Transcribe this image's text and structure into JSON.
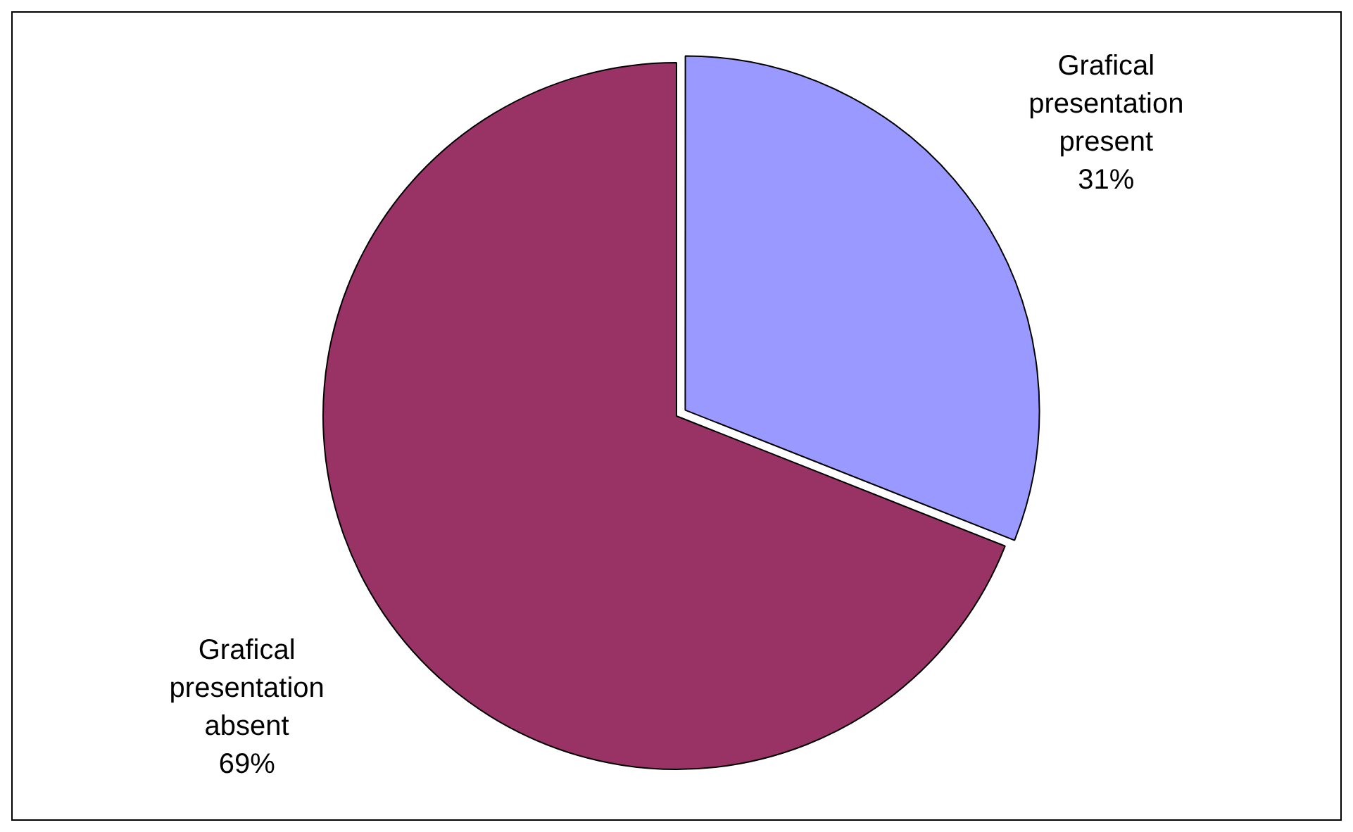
{
  "chart_data": {
    "type": "pie",
    "categories": [
      "Grafical presentation present",
      "Grafical presentation absent"
    ],
    "values": [
      31,
      69
    ],
    "colors": [
      "#9999ff",
      "#993366"
    ],
    "value_labels": [
      "31%",
      "69%"
    ]
  }
}
